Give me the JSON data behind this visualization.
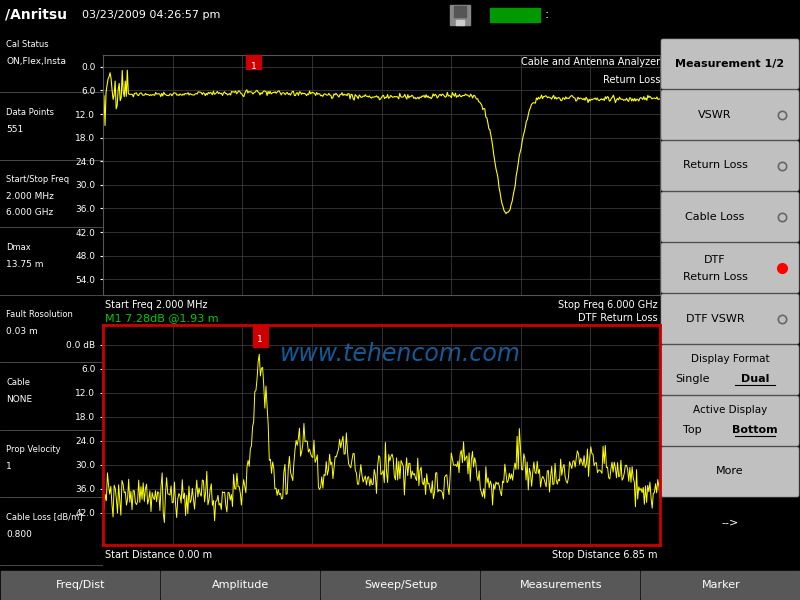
{
  "datetime_text": "03/23/2009 04:26:57 pm",
  "top_chart_title1": "Cable and Antenna Analyzer",
  "top_chart_title2": "Return Loss",
  "top_x_start": "Start Freq 2.000 MHz",
  "top_x_stop": "Stop Freq 6.000 GHz",
  "bottom_chart_title": "DTF Return Loss",
  "bottom_marker_text": "M1 7.28dB @1.93 m",
  "bottom_x_start": "Start Distance 0.00 m",
  "bottom_x_stop": "Stop Distance 6.85 m",
  "watermark": "www.tehencom.com",
  "footer_tabs": [
    "Freq/Dist",
    "Amplitude",
    "Sweep/Setup",
    "Measurements",
    "Marker"
  ],
  "left_info": [
    [
      "Cal Status",
      "ON,Flex,Insta"
    ],
    [
      "Data Points",
      "551"
    ],
    [
      "Start/Stop Freq",
      "2.000 MHz",
      "6.000 GHz"
    ],
    [
      "Dmax",
      "13.75 m"
    ],
    [
      "Fault Rosolution",
      "0.03 m"
    ],
    [
      "Cable",
      "NONE"
    ],
    [
      "Prop Velocity",
      "1"
    ],
    [
      "Cable Loss [dB/m]",
      "0.800"
    ]
  ],
  "line_color": "#ffff00",
  "grid_color": "#444444",
  "marker_text_color": "#00cc00",
  "bg_color": "#000000",
  "header_bg": "#383838",
  "footer_bg": "#404040",
  "bot_border": "#cc0000"
}
